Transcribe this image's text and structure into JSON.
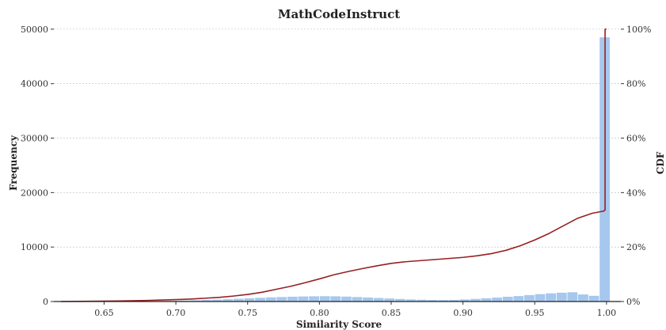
{
  "chart_data": {
    "type": "bar",
    "title": "MathCodeInstruct",
    "xlabel": "Similarity Score",
    "ylabel": "Frequency",
    "y2label": "CDF",
    "xlim": [
      0.615,
      1.01
    ],
    "ylim": [
      0,
      51000
    ],
    "y2lim": [
      0,
      1.02
    ],
    "x_ticks": [
      0.65,
      0.7,
      0.75,
      0.8,
      0.85,
      0.9,
      0.95,
      1.0
    ],
    "x_tick_labels": [
      "0.65",
      "0.70",
      "0.75",
      "0.80",
      "0.85",
      "0.90",
      "0.95",
      "1.00"
    ],
    "y_ticks": [
      0,
      10000,
      20000,
      30000,
      40000,
      50000
    ],
    "y_tick_labels": [
      "0",
      "10000",
      "20000",
      "30000",
      "40000",
      "50000"
    ],
    "y2_ticks": [
      0,
      0.2,
      0.4,
      0.6,
      0.8,
      1.0
    ],
    "y2_tick_labels": [
      "0%",
      "20%",
      "40%",
      "60%",
      "80%",
      "100%"
    ],
    "grid": true,
    "bin_width": 0.0075,
    "bar_color": "#a6c8ee",
    "cdf_color": "#962021",
    "histogram": {
      "bin_starts": [
        0.62,
        0.6275,
        0.635,
        0.6425,
        0.65,
        0.6575,
        0.665,
        0.6725,
        0.68,
        0.6875,
        0.695,
        0.7025,
        0.71,
        0.7175,
        0.725,
        0.7325,
        0.74,
        0.7475,
        0.755,
        0.7625,
        0.77,
        0.7775,
        0.785,
        0.7925,
        0.8,
        0.8075,
        0.815,
        0.8225,
        0.83,
        0.8375,
        0.845,
        0.8525,
        0.86,
        0.8675,
        0.875,
        0.8825,
        0.89,
        0.8975,
        0.905,
        0.9125,
        0.92,
        0.9275,
        0.935,
        0.9425,
        0.95,
        0.9575,
        0.965,
        0.9725,
        0.98,
        0.9875,
        0.995
      ],
      "counts": [
        10,
        10,
        15,
        20,
        25,
        35,
        45,
        60,
        80,
        100,
        130,
        170,
        220,
        280,
        350,
        420,
        500,
        600,
        680,
        760,
        820,
        880,
        920,
        960,
        980,
        960,
        900,
        820,
        740,
        650,
        560,
        470,
        390,
        330,
        290,
        270,
        300,
        380,
        480,
        600,
        720,
        870,
        1000,
        1180,
        1350,
        1500,
        1620,
        1700,
        1300,
        1050,
        48500
      ]
    },
    "cdf": {
      "x": [
        0.62,
        0.64,
        0.66,
        0.68,
        0.7,
        0.71,
        0.72,
        0.73,
        0.74,
        0.75,
        0.76,
        0.77,
        0.78,
        0.79,
        0.8,
        0.81,
        0.82,
        0.83,
        0.84,
        0.85,
        0.86,
        0.87,
        0.88,
        0.89,
        0.9,
        0.91,
        0.92,
        0.93,
        0.94,
        0.95,
        0.96,
        0.97,
        0.98,
        0.99,
        0.998,
        0.999,
        0.999,
        1.0
      ],
      "y": [
        0.0,
        0.001,
        0.002,
        0.004,
        0.007,
        0.009,
        0.012,
        0.015,
        0.02,
        0.026,
        0.034,
        0.045,
        0.056,
        0.069,
        0.083,
        0.098,
        0.11,
        0.121,
        0.131,
        0.14,
        0.146,
        0.15,
        0.154,
        0.158,
        0.162,
        0.168,
        0.176,
        0.188,
        0.205,
        0.226,
        0.25,
        0.278,
        0.306,
        0.324,
        0.332,
        0.336,
        1.0,
        1.0
      ]
    }
  }
}
